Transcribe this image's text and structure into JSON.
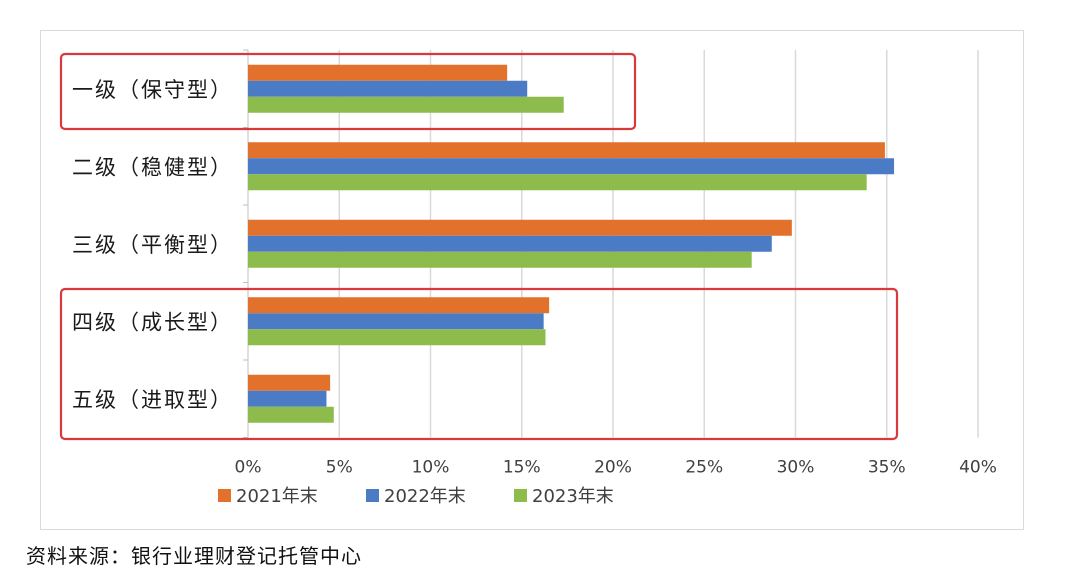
{
  "chart_data": {
    "type": "bar",
    "orientation": "horizontal",
    "categories": [
      "一级（保守型）",
      "二级（稳健型）",
      "三级（平衡型）",
      "四级（成长型）",
      "五级（进取型）"
    ],
    "series": [
      {
        "name": "2021年末",
        "color": "#E2712B",
        "values": [
          14.2,
          34.9,
          29.8,
          16.5,
          4.5
        ]
      },
      {
        "name": "2022年末",
        "color": "#4A7BC4",
        "values": [
          15.3,
          35.4,
          28.7,
          16.2,
          4.3
        ]
      },
      {
        "name": "2023年末",
        "color": "#8DBB4C",
        "values": [
          17.3,
          33.9,
          27.6,
          16.3,
          4.7
        ]
      }
    ],
    "xlim": [
      0,
      40
    ],
    "xticks": [
      "0%",
      "5%",
      "10%",
      "15%",
      "20%",
      "25%",
      "30%",
      "35%",
      "40%"
    ],
    "grid": true,
    "legend_position": "bottom",
    "highlight_color": "#D9393A",
    "highlights": [
      [
        "一级（保守型）"
      ],
      [
        "四级（成长型）",
        "五级（进取型）"
      ]
    ]
  },
  "source": "资料来源：银行业理财登记托管中心"
}
